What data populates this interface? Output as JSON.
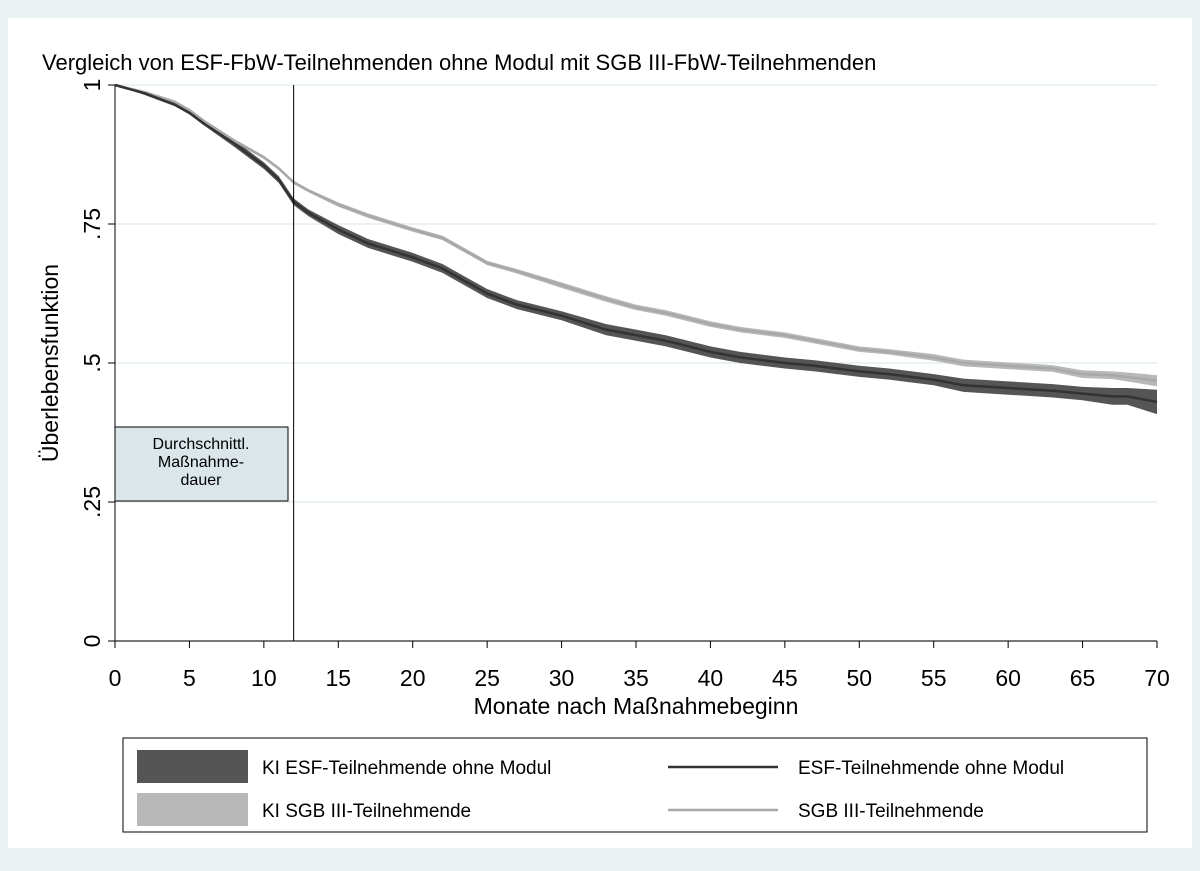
{
  "chart_data": {
    "type": "line",
    "title": "Vergleich von ESF-FbW-Teilnehmenden ohne Modul mit SGB III-FbW-Teilnehmenden",
    "xlabel": "Monate nach Maßnahmebeginn",
    "ylabel": "Überlebensfunktion",
    "xlim": [
      0,
      70
    ],
    "ylim": [
      0,
      1
    ],
    "xticks": [
      0,
      5,
      10,
      15,
      20,
      25,
      30,
      35,
      40,
      45,
      50,
      55,
      60,
      65,
      70
    ],
    "yticks": [
      0,
      {
        "value": 0.25,
        "label": ".25"
      },
      {
        "value": 0.5,
        "label": ".5"
      },
      {
        "value": 0.75,
        "label": ".75"
      },
      1
    ],
    "grid": true,
    "vline": 12,
    "annotation": [
      "Durchschnittl.",
      "Maßnahme-",
      "dauer"
    ],
    "x": [
      0,
      2,
      4,
      5,
      6,
      8,
      10,
      11,
      12,
      13,
      15,
      17,
      20,
      22,
      24,
      25,
      27,
      30,
      33,
      35,
      37,
      40,
      42,
      45,
      47,
      50,
      52,
      55,
      57,
      60,
      63,
      65,
      67,
      68,
      70
    ],
    "series": [
      {
        "name": "KI ESF-Teilnehmende ohne Modul",
        "kind": "band",
        "color": "#555555",
        "upper": [
          1,
          0.988,
          0.968,
          0.953,
          0.933,
          0.901,
          0.861,
          0.836,
          0.796,
          0.776,
          0.748,
          0.723,
          0.698,
          0.678,
          0.648,
          0.633,
          0.613,
          0.593,
          0.57,
          0.56,
          0.55,
          0.53,
          0.52,
          0.51,
          0.505,
          0.495,
          0.49,
          0.48,
          0.472,
          0.467,
          0.462,
          0.457,
          0.455,
          0.455,
          0.452
        ],
        "lower": [
          1,
          0.982,
          0.962,
          0.947,
          0.927,
          0.889,
          0.849,
          0.824,
          0.784,
          0.764,
          0.732,
          0.707,
          0.682,
          0.662,
          0.632,
          0.617,
          0.597,
          0.577,
          0.55,
          0.54,
          0.53,
          0.51,
          0.5,
          0.49,
          0.485,
          0.475,
          0.47,
          0.46,
          0.448,
          0.443,
          0.438,
          0.433,
          0.425,
          0.425,
          0.408
        ]
      },
      {
        "name": "ESF-Teilnehmende ohne Modul",
        "kind": "line",
        "color": "#333333",
        "values": [
          1,
          0.985,
          0.965,
          0.95,
          0.93,
          0.895,
          0.855,
          0.83,
          0.79,
          0.77,
          0.74,
          0.715,
          0.69,
          0.67,
          0.64,
          0.625,
          0.605,
          0.585,
          0.56,
          0.55,
          0.54,
          0.52,
          0.51,
          0.5,
          0.495,
          0.485,
          0.48,
          0.47,
          0.46,
          0.455,
          0.45,
          0.445,
          0.44,
          0.44,
          0.43
        ]
      },
      {
        "name": "KI SGB III-Teilnehmende",
        "kind": "band",
        "color": "#b8b8b8",
        "upper": [
          1,
          0.989,
          0.972,
          0.957,
          0.937,
          0.903,
          0.873,
          0.853,
          0.828,
          0.813,
          0.789,
          0.769,
          0.744,
          0.729,
          0.699,
          0.684,
          0.669,
          0.645,
          0.62,
          0.605,
          0.595,
          0.575,
          0.565,
          0.555,
          0.545,
          0.53,
          0.525,
          0.516,
          0.506,
          0.501,
          0.496,
          0.487,
          0.485,
          0.483,
          0.478
        ],
        "lower": [
          1,
          0.985,
          0.968,
          0.953,
          0.933,
          0.897,
          0.867,
          0.847,
          0.822,
          0.807,
          0.781,
          0.761,
          0.736,
          0.721,
          0.691,
          0.676,
          0.661,
          0.635,
          0.61,
          0.595,
          0.585,
          0.565,
          0.555,
          0.545,
          0.535,
          0.52,
          0.515,
          0.504,
          0.494,
          0.489,
          0.484,
          0.473,
          0.471,
          0.467,
          0.458
        ]
      },
      {
        "name": "SGB III-Teilnehmende",
        "kind": "line",
        "color": "#a8a8a8",
        "values": [
          1,
          0.987,
          0.97,
          0.955,
          0.935,
          0.9,
          0.87,
          0.85,
          0.825,
          0.81,
          0.785,
          0.765,
          0.74,
          0.725,
          0.695,
          0.68,
          0.665,
          0.64,
          0.615,
          0.6,
          0.59,
          0.57,
          0.56,
          0.55,
          0.54,
          0.525,
          0.52,
          0.51,
          0.5,
          0.495,
          0.49,
          0.48,
          0.478,
          0.475,
          0.468
        ]
      }
    ]
  }
}
